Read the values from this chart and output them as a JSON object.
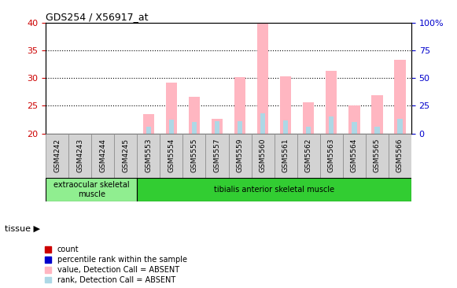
{
  "title": "GDS254 / X56917_at",
  "samples": [
    "GSM4242",
    "GSM4243",
    "GSM4244",
    "GSM4245",
    "GSM5553",
    "GSM5554",
    "GSM5555",
    "GSM5557",
    "GSM5559",
    "GSM5560",
    "GSM5561",
    "GSM5562",
    "GSM5563",
    "GSM5564",
    "GSM5565",
    "GSM5566"
  ],
  "value_absent": [
    null,
    null,
    null,
    null,
    23.5,
    29.2,
    26.7,
    22.7,
    30.2,
    40.0,
    30.3,
    25.7,
    31.4,
    25.0,
    26.9,
    33.4
  ],
  "rank_absent": [
    null,
    null,
    null,
    null,
    21.2,
    22.5,
    22.0,
    22.2,
    22.2,
    23.7,
    22.3,
    21.2,
    23.0,
    22.0,
    21.2,
    22.7
  ],
  "ylim": [
    20,
    40
  ],
  "yticks": [
    20,
    25,
    30,
    35,
    40
  ],
  "y2ticks": [
    0,
    25,
    50,
    75,
    100
  ],
  "y2labels": [
    "0",
    "25",
    "50",
    "75",
    "100%"
  ],
  "tissue_groups": [
    {
      "label": "extraocular skeletal\nmuscle",
      "start": 0,
      "end": 4,
      "color": "#90ee90"
    },
    {
      "label": "tibialis anterior skeletal muscle",
      "start": 4,
      "end": 16,
      "color": "#32cd32"
    }
  ],
  "tissue_label": "tissue",
  "bar_width": 0.5,
  "value_absent_color": "#ffb6c1",
  "rank_absent_color": "#add8e6",
  "count_color": "#cc0000",
  "percentile_color": "#0000cc",
  "legend_items": [
    {
      "label": "count",
      "color": "#cc0000"
    },
    {
      "label": "percentile rank within the sample",
      "color": "#0000cc"
    },
    {
      "label": "value, Detection Call = ABSENT",
      "color": "#ffb6c1"
    },
    {
      "label": "rank, Detection Call = ABSENT",
      "color": "#add8e6"
    }
  ],
  "background_color": "#ffffff",
  "plot_bg_color": "#ffffff",
  "axis_label_color_left": "#cc0000",
  "axis_label_color_right": "#0000cc",
  "xlabel_bg_color": "#d3d3d3",
  "xlabel_border_color": "#888888"
}
